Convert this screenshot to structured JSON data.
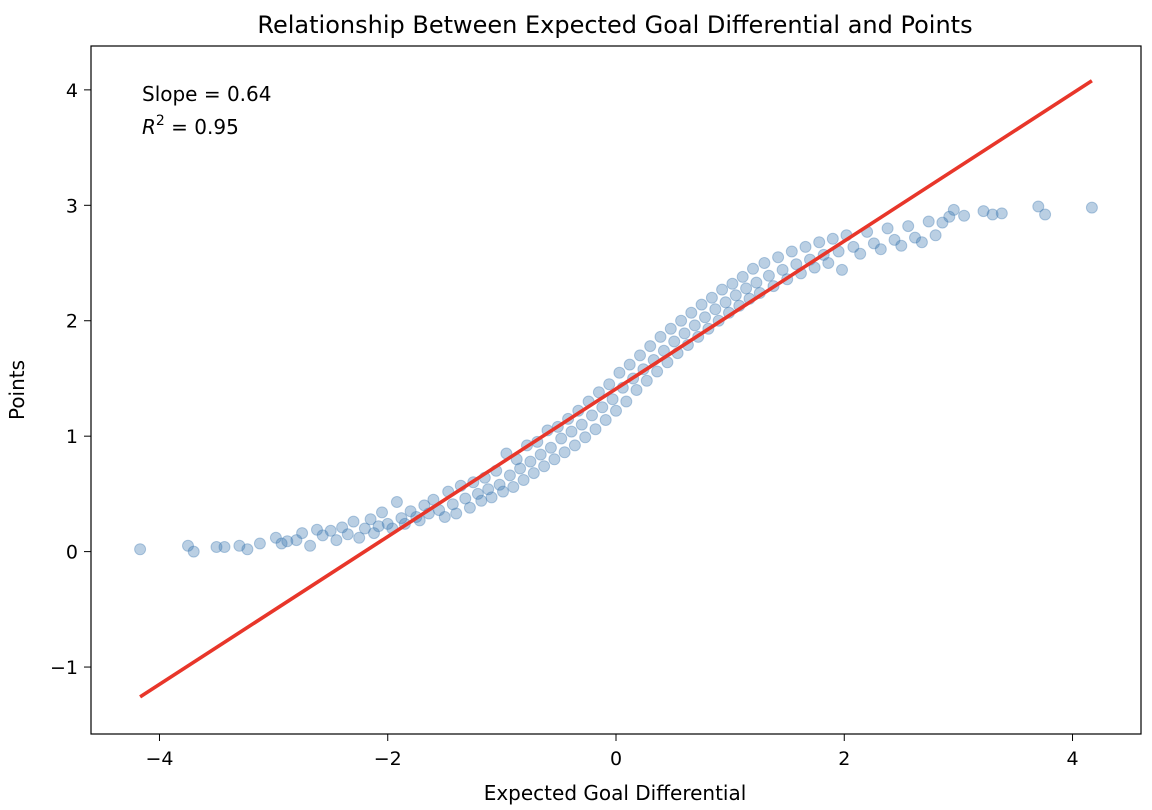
{
  "chart_data": {
    "type": "scatter",
    "title": "Relationship Between Expected Goal Differential and Points",
    "xlabel": "Expected Goal Differential",
    "ylabel": "Points",
    "xlim": [
      -4.6,
      4.6
    ],
    "ylim": [
      -1.58,
      4.38
    ],
    "xticks": [
      -4,
      -2,
      0,
      2,
      4
    ],
    "xtick_labels": [
      "−4",
      "−2",
      "0",
      "2",
      "4"
    ],
    "yticks": [
      -1,
      0,
      1,
      2,
      3,
      4
    ],
    "ytick_labels": [
      "−1",
      "0",
      "1",
      "2",
      "3",
      "4"
    ],
    "grid": false,
    "annotations": {
      "slope": "Slope = 0.64",
      "r2_symbol": "R",
      "r2_exponent": "2",
      "r2_value": " = 0.95"
    },
    "fit_line": {
      "slope": 0.64,
      "intercept": 1.41,
      "x_range": [
        -4.17,
        4.17
      ],
      "color": "#e8362a"
    },
    "points_color": "#3a75b0",
    "points_opacity": 0.35,
    "series": [
      {
        "points": [
          [
            -4.17,
            0.02
          ],
          [
            -3.75,
            0.05
          ],
          [
            -3.7,
            0.0
          ],
          [
            -3.5,
            0.04
          ],
          [
            -3.43,
            0.04
          ],
          [
            -3.3,
            0.05
          ],
          [
            -3.23,
            0.02
          ],
          [
            -3.12,
            0.07
          ],
          [
            -2.98,
            0.12
          ],
          [
            -2.93,
            0.07
          ],
          [
            -2.88,
            0.09
          ],
          [
            -2.8,
            0.1
          ],
          [
            -2.75,
            0.16
          ],
          [
            -2.68,
            0.05
          ],
          [
            -2.62,
            0.19
          ],
          [
            -2.57,
            0.14
          ],
          [
            -2.5,
            0.18
          ],
          [
            -2.45,
            0.1
          ],
          [
            -2.4,
            0.21
          ],
          [
            -2.35,
            0.15
          ],
          [
            -2.3,
            0.26
          ],
          [
            -2.25,
            0.12
          ],
          [
            -2.2,
            0.2
          ],
          [
            -2.15,
            0.28
          ],
          [
            -2.12,
            0.16
          ],
          [
            -2.08,
            0.22
          ],
          [
            -2.05,
            0.34
          ],
          [
            -2.0,
            0.24
          ],
          [
            -1.96,
            0.2
          ],
          [
            -1.92,
            0.43
          ],
          [
            -1.88,
            0.29
          ],
          [
            -1.85,
            0.24
          ],
          [
            -1.8,
            0.35
          ],
          [
            -1.75,
            0.3
          ],
          [
            -1.72,
            0.27
          ],
          [
            -1.68,
            0.4
          ],
          [
            -1.64,
            0.33
          ],
          [
            -1.6,
            0.45
          ],
          [
            -1.55,
            0.36
          ],
          [
            -1.5,
            0.3
          ],
          [
            -1.47,
            0.52
          ],
          [
            -1.43,
            0.41
          ],
          [
            -1.4,
            0.33
          ],
          [
            -1.36,
            0.57
          ],
          [
            -1.32,
            0.46
          ],
          [
            -1.28,
            0.38
          ],
          [
            -1.25,
            0.6
          ],
          [
            -1.21,
            0.5
          ],
          [
            -1.18,
            0.44
          ],
          [
            -1.15,
            0.64
          ],
          [
            -1.12,
            0.54
          ],
          [
            -1.09,
            0.47
          ],
          [
            -1.05,
            0.7
          ],
          [
            -1.02,
            0.58
          ],
          [
            -0.99,
            0.52
          ],
          [
            -0.96,
            0.85
          ],
          [
            -0.93,
            0.66
          ],
          [
            -0.9,
            0.56
          ],
          [
            -0.87,
            0.8
          ],
          [
            -0.84,
            0.72
          ],
          [
            -0.81,
            0.62
          ],
          [
            -0.78,
            0.92
          ],
          [
            -0.75,
            0.78
          ],
          [
            -0.72,
            0.68
          ],
          [
            -0.69,
            0.95
          ],
          [
            -0.66,
            0.84
          ],
          [
            -0.63,
            0.74
          ],
          [
            -0.6,
            1.05
          ],
          [
            -0.57,
            0.9
          ],
          [
            -0.54,
            0.8
          ],
          [
            -0.51,
            1.08
          ],
          [
            -0.48,
            0.98
          ],
          [
            -0.45,
            0.86
          ],
          [
            -0.42,
            1.15
          ],
          [
            -0.39,
            1.04
          ],
          [
            -0.36,
            0.92
          ],
          [
            -0.33,
            1.22
          ],
          [
            -0.3,
            1.1
          ],
          [
            -0.27,
            0.99
          ],
          [
            -0.24,
            1.3
          ],
          [
            -0.21,
            1.18
          ],
          [
            -0.18,
            1.06
          ],
          [
            -0.15,
            1.38
          ],
          [
            -0.12,
            1.25
          ],
          [
            -0.09,
            1.14
          ],
          [
            -0.06,
            1.45
          ],
          [
            -0.03,
            1.32
          ],
          [
            0.0,
            1.22
          ],
          [
            0.03,
            1.55
          ],
          [
            0.06,
            1.42
          ],
          [
            0.09,
            1.3
          ],
          [
            0.12,
            1.62
          ],
          [
            0.15,
            1.5
          ],
          [
            0.18,
            1.4
          ],
          [
            0.21,
            1.7
          ],
          [
            0.24,
            1.58
          ],
          [
            0.27,
            1.48
          ],
          [
            0.3,
            1.78
          ],
          [
            0.33,
            1.66
          ],
          [
            0.36,
            1.56
          ],
          [
            0.39,
            1.86
          ],
          [
            0.42,
            1.74
          ],
          [
            0.45,
            1.64
          ],
          [
            0.48,
            1.93
          ],
          [
            0.51,
            1.82
          ],
          [
            0.54,
            1.72
          ],
          [
            0.57,
            2.0
          ],
          [
            0.6,
            1.89
          ],
          [
            0.63,
            1.79
          ],
          [
            0.66,
            2.07
          ],
          [
            0.69,
            1.96
          ],
          [
            0.72,
            1.86
          ],
          [
            0.75,
            2.14
          ],
          [
            0.78,
            2.03
          ],
          [
            0.81,
            1.93
          ],
          [
            0.84,
            2.2
          ],
          [
            0.87,
            2.1
          ],
          [
            0.9,
            2.0
          ],
          [
            0.93,
            2.27
          ],
          [
            0.96,
            2.16
          ],
          [
            0.99,
            2.07
          ],
          [
            1.02,
            2.32
          ],
          [
            1.05,
            2.22
          ],
          [
            1.08,
            2.13
          ],
          [
            1.11,
            2.38
          ],
          [
            1.14,
            2.28
          ],
          [
            1.17,
            2.19
          ],
          [
            1.2,
            2.45
          ],
          [
            1.23,
            2.33
          ],
          [
            1.26,
            2.24
          ],
          [
            1.3,
            2.5
          ],
          [
            1.34,
            2.39
          ],
          [
            1.38,
            2.3
          ],
          [
            1.42,
            2.55
          ],
          [
            1.46,
            2.44
          ],
          [
            1.5,
            2.36
          ],
          [
            1.54,
            2.6
          ],
          [
            1.58,
            2.49
          ],
          [
            1.62,
            2.41
          ],
          [
            1.66,
            2.64
          ],
          [
            1.7,
            2.53
          ],
          [
            1.74,
            2.46
          ],
          [
            1.78,
            2.68
          ],
          [
            1.82,
            2.57
          ],
          [
            1.86,
            2.5
          ],
          [
            1.9,
            2.71
          ],
          [
            1.95,
            2.6
          ],
          [
            1.98,
            2.44
          ],
          [
            2.02,
            2.74
          ],
          [
            2.08,
            2.64
          ],
          [
            2.14,
            2.58
          ],
          [
            2.2,
            2.77
          ],
          [
            2.26,
            2.67
          ],
          [
            2.32,
            2.62
          ],
          [
            2.38,
            2.8
          ],
          [
            2.44,
            2.7
          ],
          [
            2.5,
            2.65
          ],
          [
            2.56,
            2.82
          ],
          [
            2.62,
            2.72
          ],
          [
            2.68,
            2.68
          ],
          [
            2.74,
            2.86
          ],
          [
            2.8,
            2.74
          ],
          [
            2.86,
            2.85
          ],
          [
            2.92,
            2.9
          ],
          [
            2.96,
            2.96
          ],
          [
            3.05,
            2.91
          ],
          [
            3.22,
            2.95
          ],
          [
            3.3,
            2.92
          ],
          [
            3.38,
            2.93
          ],
          [
            3.7,
            2.99
          ],
          [
            3.76,
            2.92
          ],
          [
            4.17,
            2.98
          ]
        ]
      }
    ]
  }
}
